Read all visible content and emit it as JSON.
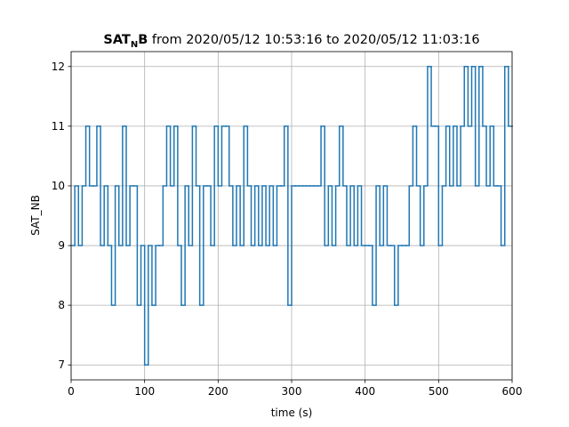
{
  "chart_data": {
    "type": "line",
    "drawstyle": "steps-post",
    "title": {
      "base": "SAT",
      "subscript": "N",
      "after": "B",
      "text": " from 2020/05/12 10:53:16 to 2020/05/12 11:03:16"
    },
    "xlabel": "time (s)",
    "ylabel": "SAT_NB",
    "xlim": [
      0,
      600
    ],
    "ylim": [
      6.75,
      12.25
    ],
    "xticks": [
      0,
      100,
      200,
      300,
      400,
      500,
      600
    ],
    "yticks": [
      7,
      8,
      9,
      10,
      11,
      12
    ],
    "grid": true,
    "x": [
      0,
      5,
      10,
      15,
      20,
      25,
      30,
      35,
      40,
      45,
      50,
      55,
      60,
      65,
      70,
      75,
      80,
      85,
      90,
      95,
      100,
      105,
      110,
      115,
      120,
      125,
      130,
      135,
      140,
      145,
      150,
      155,
      160,
      165,
      170,
      175,
      180,
      185,
      190,
      195,
      200,
      205,
      210,
      215,
      220,
      225,
      230,
      235,
      240,
      245,
      250,
      255,
      260,
      265,
      270,
      275,
      280,
      285,
      290,
      295,
      300,
      305,
      310,
      315,
      320,
      325,
      330,
      335,
      340,
      345,
      350,
      355,
      360,
      365,
      370,
      375,
      380,
      385,
      390,
      395,
      400,
      405,
      410,
      415,
      420,
      425,
      430,
      435,
      440,
      445,
      450,
      455,
      460,
      465,
      470,
      475,
      480,
      485,
      490,
      495,
      500,
      505,
      510,
      515,
      520,
      525,
      530,
      535,
      540,
      545,
      550,
      555,
      560,
      565,
      570,
      575,
      580,
      585,
      590,
      595,
      600
    ],
    "series": [
      {
        "name": "SAT_NB",
        "color": "#1f77b4",
        "values": [
          9,
          10,
          9,
          10,
          11,
          10,
          10,
          11,
          9,
          10,
          9,
          8,
          10,
          9,
          11,
          9,
          10,
          10,
          8,
          9,
          7,
          9,
          8,
          9,
          9,
          10,
          11,
          10,
          11,
          9,
          8,
          10,
          9,
          11,
          10,
          8,
          10,
          10,
          9,
          11,
          10,
          11,
          11,
          10,
          9,
          10,
          9,
          11,
          10,
          9,
          10,
          9,
          10,
          9,
          10,
          9,
          10,
          10,
          11,
          8,
          10,
          10,
          10,
          10,
          10,
          10,
          10,
          10,
          11,
          9,
          10,
          9,
          10,
          11,
          10,
          9,
          10,
          9,
          10,
          9,
          9,
          9,
          8,
          10,
          9,
          10,
          9,
          9,
          8,
          9,
          9,
          9,
          10,
          11,
          10,
          9,
          10,
          12,
          11,
          11,
          9,
          10,
          11,
          10,
          11,
          10,
          11,
          12,
          11,
          12,
          10,
          12,
          11,
          10,
          11,
          10,
          10,
          9,
          12,
          11,
          11
        ]
      }
    ]
  }
}
